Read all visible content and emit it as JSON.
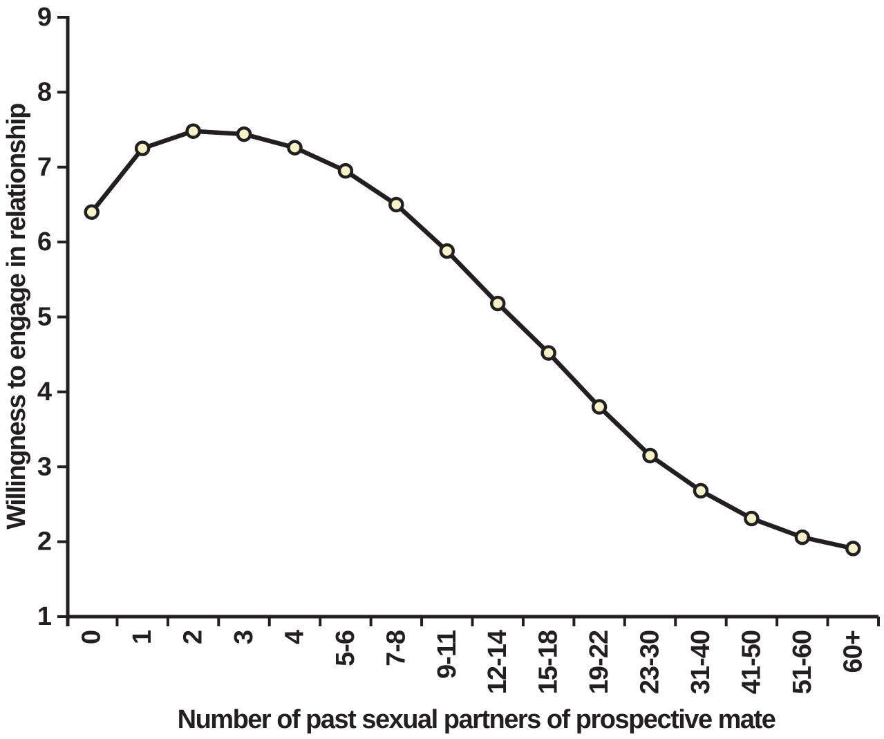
{
  "chart_data": {
    "type": "line",
    "title": "",
    "xlabel": "Number of past sexual partners of prospective mate",
    "ylabel": "Willingness to engage in relationship",
    "categories": [
      "0",
      "1",
      "2",
      "3",
      "4",
      "5-6",
      "7-8",
      "9-11",
      "12-14",
      "15-18",
      "19-22",
      "23-30",
      "31-40",
      "41-50",
      "51-60",
      "60+"
    ],
    "values": [
      6.4,
      7.25,
      7.48,
      7.44,
      7.26,
      6.95,
      6.5,
      5.88,
      5.18,
      4.52,
      3.8,
      3.15,
      2.68,
      2.31,
      2.06,
      1.91
    ],
    "yticks": [
      1,
      2,
      3,
      4,
      5,
      6,
      7,
      8,
      9
    ],
    "ylim": [
      1,
      9
    ],
    "grid": false,
    "legend_position": "none",
    "colors": {
      "line": "#231f20",
      "axis": "#231f20",
      "text": "#231f20",
      "marker_fill": "#f6f3ca",
      "marker_stroke": "#231f20",
      "background": "#ffffff"
    }
  }
}
